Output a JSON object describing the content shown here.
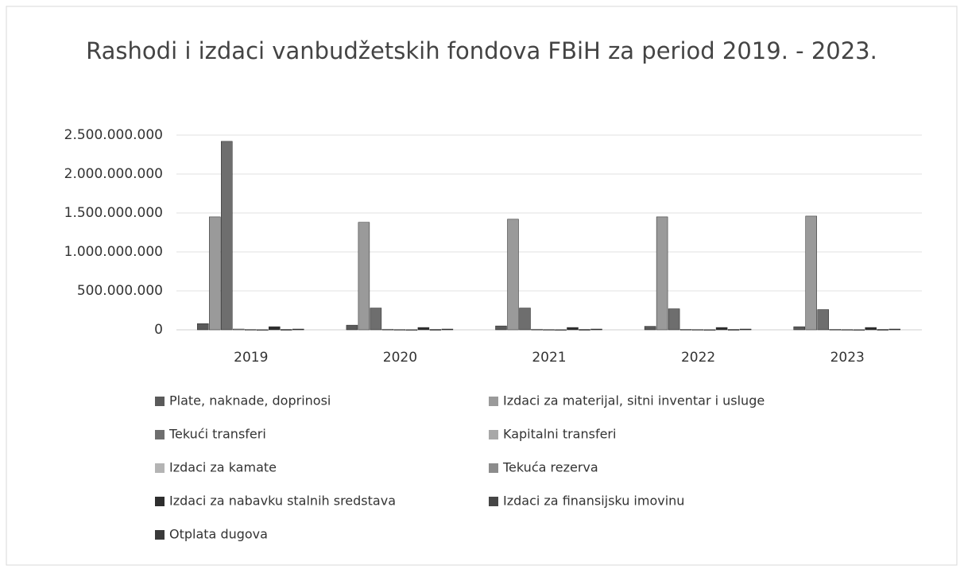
{
  "chart_data": {
    "type": "bar",
    "title": "Rashodi i izdaci vanbudžetskih fondova FBiH za period 2019. - 2023.",
    "categories": [
      "2019",
      "2020",
      "2021",
      "2022",
      "2023"
    ],
    "series": [
      {
        "name": "Plate, naknade, doprinosi",
        "color": "#5a5a5a",
        "values": [
          80000000,
          60000000,
          50000000,
          45000000,
          40000000
        ]
      },
      {
        "name": "Izdaci za materijal, sitni inventar i usluge",
        "color": "#9a9a9a",
        "values": [
          1450000000,
          1380000000,
          1420000000,
          1450000000,
          1460000000
        ]
      },
      {
        "name": "Tekući transferi",
        "color": "#6e6e6e",
        "values": [
          2420000000,
          280000000,
          280000000,
          270000000,
          260000000
        ]
      },
      {
        "name": "Kapitalni transferi",
        "color": "#a8a8a8",
        "values": [
          10000000,
          8000000,
          8000000,
          7000000,
          7000000
        ]
      },
      {
        "name": "Izdaci za kamate",
        "color": "#b4b4b4",
        "values": [
          5000000,
          4000000,
          4000000,
          4000000,
          4000000
        ]
      },
      {
        "name": "Tekuća rezerva",
        "color": "#8c8c8c",
        "values": [
          2000000,
          2000000,
          2000000,
          2000000,
          2000000
        ]
      },
      {
        "name": "Izdaci za nabavku stalnih sredstava",
        "color": "#2e2e2e",
        "values": [
          40000000,
          30000000,
          30000000,
          30000000,
          30000000
        ]
      },
      {
        "name": "Izdaci za finansijsku imovinu",
        "color": "#464646",
        "values": [
          5000000,
          5000000,
          5000000,
          5000000,
          5000000
        ]
      },
      {
        "name": "Otplata dugova",
        "color": "#3a3a3a",
        "values": [
          10000000,
          10000000,
          10000000,
          10000000,
          10000000
        ]
      }
    ],
    "ylim": [
      0,
      2500000000
    ],
    "yticks": [
      0,
      {
        "value": 500000000,
        "label": "500.000.000"
      },
      {
        "value": 1000000000,
        "label": "1.000.000.000"
      },
      {
        "value": 1500000000,
        "label": "1.500.000.000"
      },
      {
        "value": 2000000000,
        "label": "2.000.000.000"
      },
      {
        "value": 2500000000,
        "label": "2.500.000.000"
      }
    ],
    "grid": true
  }
}
